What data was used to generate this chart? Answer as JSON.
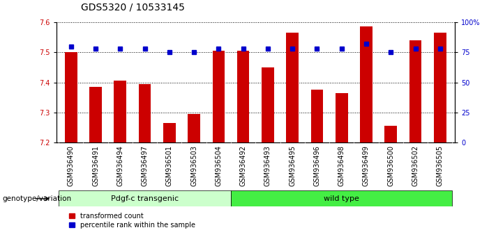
{
  "title": "GDS5320 / 10533145",
  "samples": [
    "GSM936490",
    "GSM936491",
    "GSM936494",
    "GSM936497",
    "GSM936501",
    "GSM936503",
    "GSM936504",
    "GSM936492",
    "GSM936493",
    "GSM936495",
    "GSM936496",
    "GSM936498",
    "GSM936499",
    "GSM936500",
    "GSM936502",
    "GSM936505"
  ],
  "red_values": [
    7.5,
    7.385,
    7.405,
    7.395,
    7.265,
    7.295,
    7.505,
    7.505,
    7.45,
    7.565,
    7.375,
    7.365,
    7.585,
    7.255,
    7.54,
    7.565
  ],
  "blue_values": [
    80,
    78,
    78,
    78,
    75,
    75,
    78,
    78,
    78,
    78,
    78,
    78,
    82,
    75,
    78,
    78
  ],
  "ylim_left": [
    7.2,
    7.6
  ],
  "ylim_right": [
    0,
    100
  ],
  "yticks_left": [
    7.2,
    7.3,
    7.4,
    7.5,
    7.6
  ],
  "yticks_right": [
    0,
    25,
    50,
    75,
    100
  ],
  "group1_label": "Pdgf-c transgenic",
  "group2_label": "wild type",
  "group1_count": 7,
  "group2_count": 9,
  "xlabel_genotype": "genotype/variation",
  "legend_red": "transformed count",
  "legend_blue": "percentile rank within the sample",
  "bar_color": "#cc0000",
  "blue_color": "#0000cc",
  "group1_bg": "#ccffcc",
  "group2_bg": "#44ee44",
  "xtick_bg": "#dddddd",
  "bar_bottom": 7.2,
  "bar_width": 0.5,
  "blue_marker_size": 5,
  "title_fontsize": 10,
  "tick_fontsize": 7,
  "label_fontsize": 8
}
